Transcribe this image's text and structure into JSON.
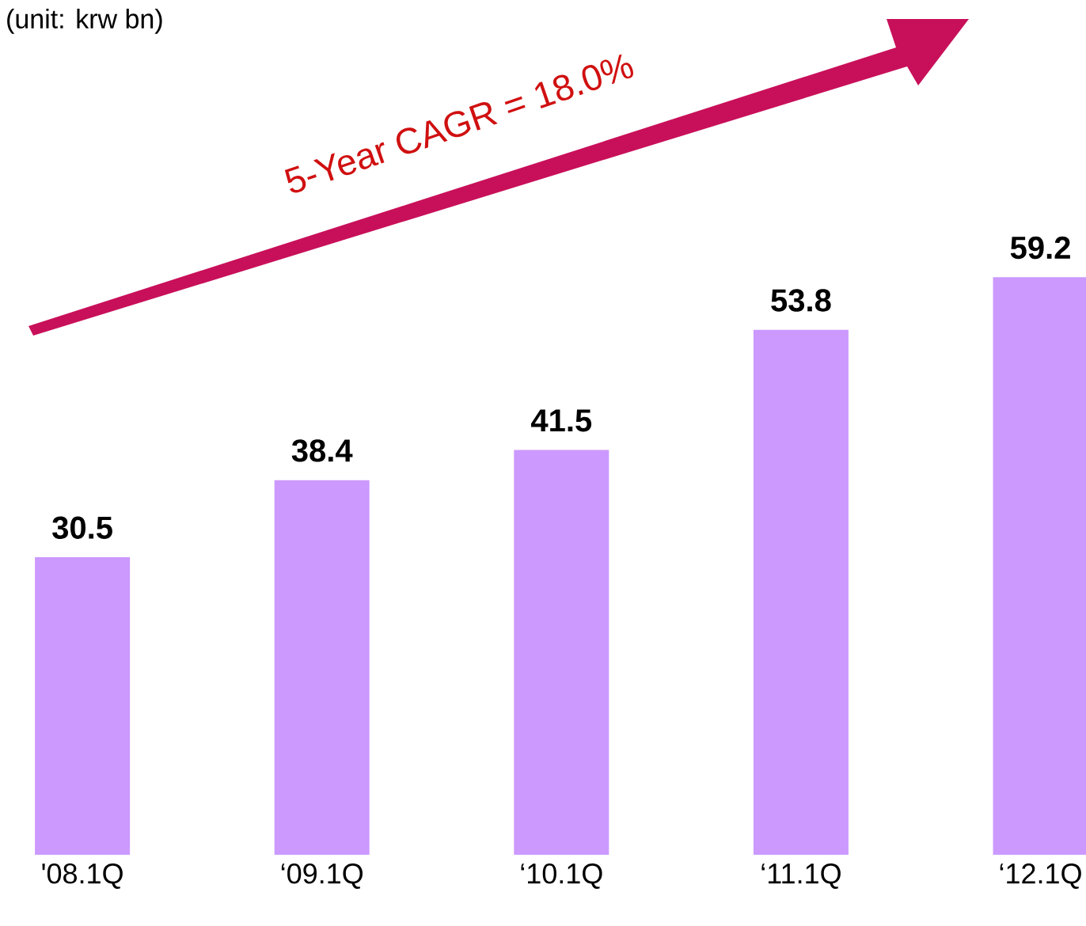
{
  "chart_data": {
    "type": "bar",
    "categories": [
      "'08.1Q",
      "‘09.1Q",
      "‘10.1Q",
      "‘11.1Q",
      "‘12.1Q"
    ],
    "values": [
      30.5,
      38.4,
      41.5,
      53.8,
      59.2
    ],
    "color": "#cc99ff",
    "data_labels": true,
    "annotations": [
      "(unit: krw bn)",
      "5-Year CAGR = 18.0%"
    ]
  }
}
